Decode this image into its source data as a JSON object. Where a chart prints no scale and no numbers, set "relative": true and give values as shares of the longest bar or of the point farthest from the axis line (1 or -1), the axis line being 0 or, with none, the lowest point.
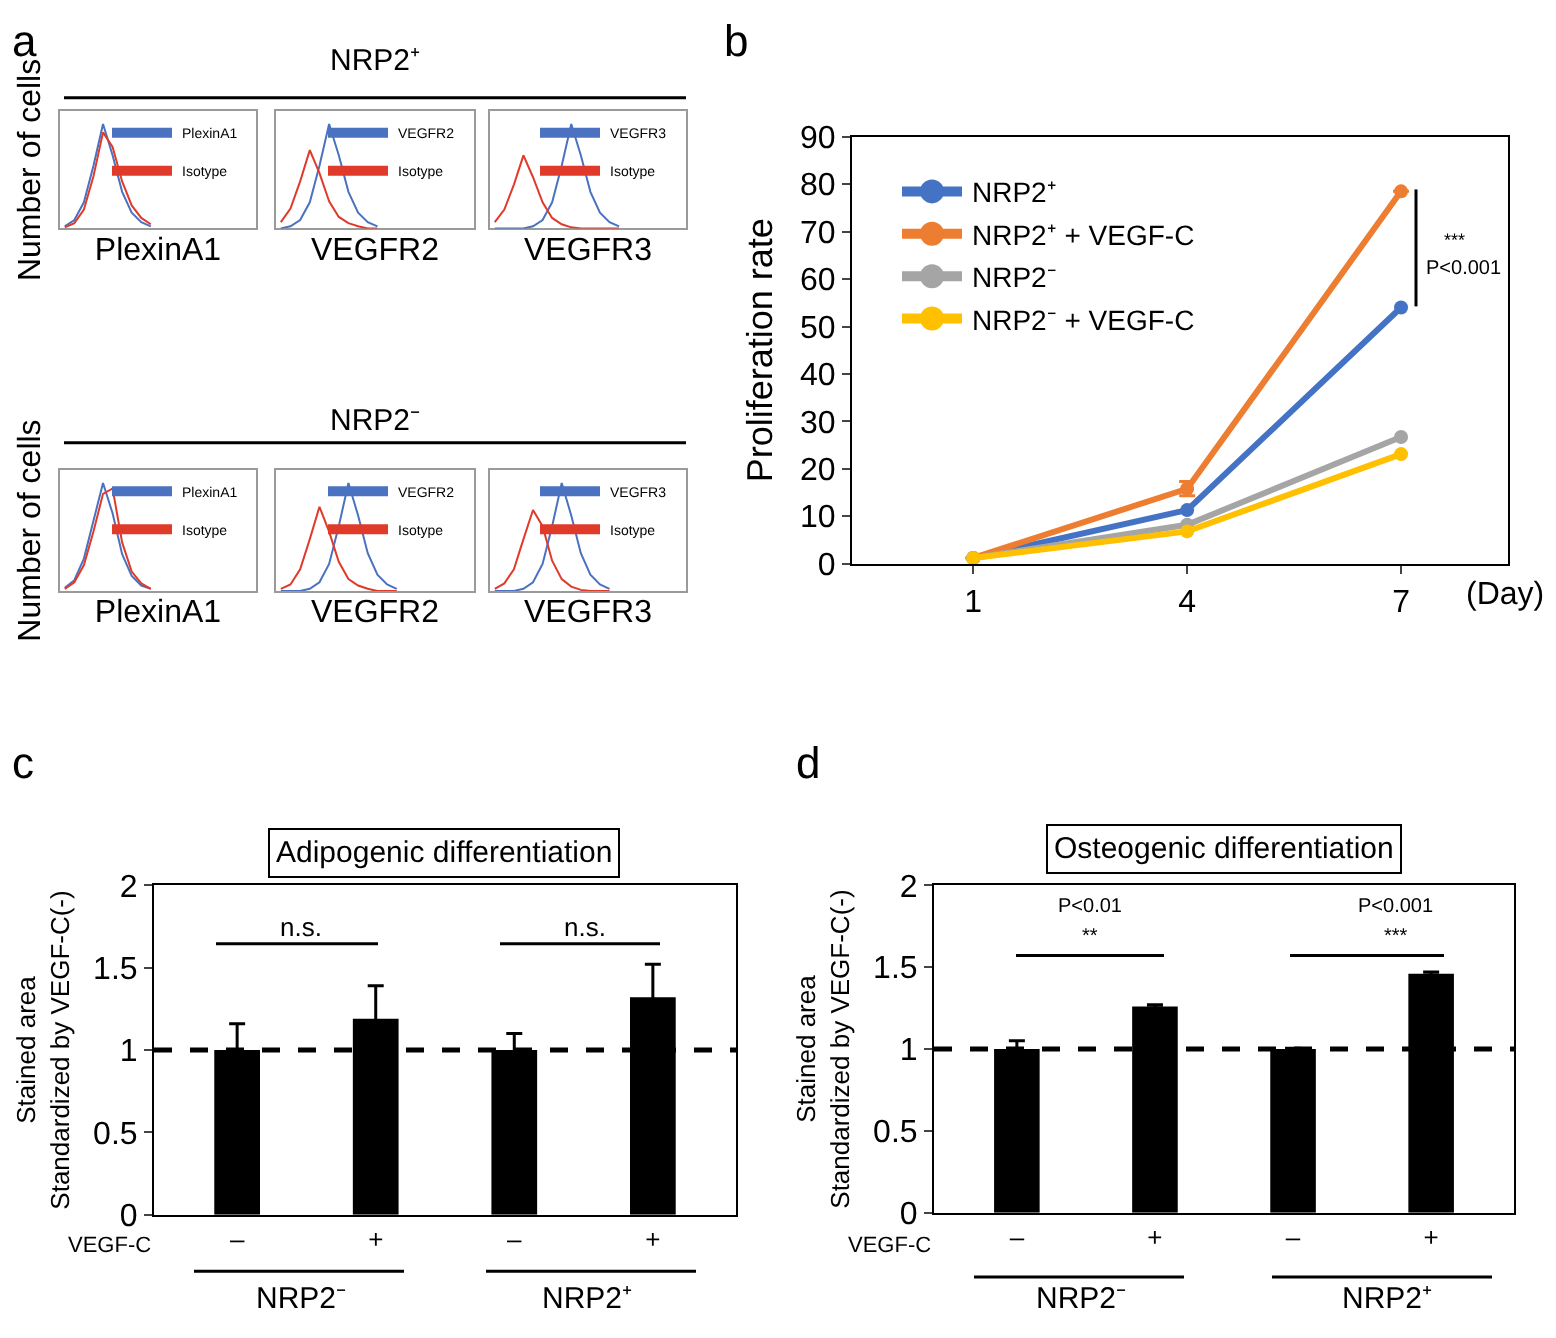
{
  "chart_data": [
    {
      "type": "line",
      "relative": true,
      "tick_labels": false,
      "legend": "top right",
      "xlabel": "PlexinA1",
      "ylabel": "Number of cells",
      "annotations": [
        "a",
        "NRP2⁺"
      ],
      "categories": [
        null,
        null,
        null,
        null,
        null,
        null,
        null,
        null,
        null,
        null
      ],
      "series": [
        {
          "name": "PlexinA1",
          "color": "#4a72c0",
          "values": [
            0.02,
            0.08,
            0.25,
            0.6,
            1,
            0.7,
            0.35,
            0.15,
            0.06,
            0.02
          ]
        },
        {
          "name": "Isotype",
          "color": "#e03a2a",
          "values": [
            0.01,
            0.05,
            0.18,
            0.5,
            0.92,
            0.78,
            0.45,
            0.22,
            0.1,
            0.04
          ]
        }
      ]
    },
    {
      "type": "line",
      "relative": true,
      "tick_labels": false,
      "legend": "top right",
      "xlabel": "VEGFR2",
      "categories": [
        null,
        null,
        null,
        null,
        null,
        null,
        null,
        null,
        null,
        null,
        null
      ],
      "series": [
        {
          "name": "VEGFR2",
          "color": "#4a72c0",
          "values": [
            0,
            0.02,
            0.08,
            0.25,
            0.6,
            1,
            0.7,
            0.35,
            0.15,
            0.06,
            0.02
          ]
        },
        {
          "name": "Isotype",
          "color": "#e03a2a",
          "values": [
            0.06,
            0.19,
            0.45,
            0.75,
            0.53,
            0.26,
            0.11,
            0.05,
            0.02,
            0,
            0
          ]
        }
      ]
    },
    {
      "type": "line",
      "relative": true,
      "tick_labels": false,
      "legend": "top right",
      "xlabel": "VEGFR3",
      "categories": [
        null,
        null,
        null,
        null,
        null,
        null,
        null,
        null,
        null,
        null,
        null,
        null,
        null,
        null
      ],
      "series": [
        {
          "name": "VEGFR3",
          "color": "#4a72c0",
          "values": [
            0,
            0,
            0,
            0,
            0.02,
            0.08,
            0.25,
            0.6,
            1,
            0.7,
            0.35,
            0.15,
            0.06,
            0.02
          ]
        },
        {
          "name": "Isotype",
          "color": "#e03a2a",
          "values": [
            0.06,
            0.18,
            0.42,
            0.7,
            0.49,
            0.25,
            0.1,
            0.04,
            0.01,
            0,
            0,
            0,
            0,
            0
          ]
        }
      ]
    },
    {
      "type": "line",
      "relative": true,
      "tick_labels": false,
      "legend": "top right",
      "xlabel": "PlexinA1",
      "ylabel": "Number of cells",
      "annotations": [
        "NRP2⁻"
      ],
      "categories": [
        null,
        null,
        null,
        null,
        null,
        null,
        null,
        null,
        null,
        null
      ],
      "series": [
        {
          "name": "PlexinA1",
          "color": "#4a72c0",
          "values": [
            0.03,
            0.1,
            0.3,
            0.65,
            1,
            0.72,
            0.34,
            0.14,
            0.05,
            0.02
          ]
        },
        {
          "name": "Isotype",
          "color": "#e03a2a",
          "values": [
            0.02,
            0.08,
            0.24,
            0.55,
            0.9,
            0.95,
            0.45,
            0.18,
            0.07,
            0.02
          ]
        }
      ]
    },
    {
      "type": "line",
      "relative": true,
      "tick_labels": false,
      "legend": "top right",
      "xlabel": "VEGFR2",
      "categories": [
        null,
        null,
        null,
        null,
        null,
        null,
        null,
        null,
        null,
        null,
        null,
        null,
        null
      ],
      "series": [
        {
          "name": "VEGFR2",
          "color": "#4a72c0",
          "values": [
            0,
            0,
            0,
            0.02,
            0.08,
            0.25,
            0.6,
            1,
            0.7,
            0.35,
            0.15,
            0.06,
            0.02
          ]
        },
        {
          "name": "Isotype",
          "color": "#e03a2a",
          "values": [
            0.02,
            0.06,
            0.2,
            0.48,
            0.78,
            0.55,
            0.27,
            0.11,
            0.05,
            0.02,
            0,
            0,
            0
          ]
        }
      ]
    },
    {
      "type": "line",
      "relative": true,
      "tick_labels": false,
      "legend": "top right",
      "xlabel": "VEGFR3",
      "categories": [
        null,
        null,
        null,
        null,
        null,
        null,
        null,
        null,
        null,
        null,
        null,
        null,
        null
      ],
      "series": [
        {
          "name": "VEGFR3",
          "color": "#4a72c0",
          "values": [
            0,
            0,
            0,
            0.02,
            0.08,
            0.25,
            0.6,
            1,
            0.7,
            0.35,
            0.15,
            0.06,
            0.02
          ]
        },
        {
          "name": "Isotype",
          "color": "#e03a2a",
          "values": [
            0.02,
            0.07,
            0.2,
            0.48,
            0.75,
            0.6,
            0.28,
            0.11,
            0.04,
            0.01,
            0,
            0,
            0
          ]
        }
      ]
    },
    {
      "type": "line",
      "x": [
        1,
        4,
        7
      ],
      "xlim": [
        -0.7,
        8.5
      ],
      "xticks": [
        1,
        4,
        7
      ],
      "ylim": [
        0,
        90
      ],
      "yticks": [
        0,
        10,
        20,
        30,
        40,
        50,
        60,
        70,
        80,
        90
      ],
      "xlabel": "(Day)",
      "ylabel": "Proliferation rate",
      "legend": "top left",
      "marker": "circle",
      "line_style": "solid",
      "annotations": [
        "b",
        "***",
        "P<0.001"
      ],
      "series": [
        {
          "name": "NRP2⁺",
          "color": "#4472c4",
          "values": [
            1.2,
            11.3,
            54
          ]
        },
        {
          "name": "NRP2⁺ + VEGF-C",
          "color": "#ed7d31",
          "values": [
            1.2,
            15.8,
            78.5
          ],
          "errors": [
            null,
            1.5,
            null
          ]
        },
        {
          "name": "NRP2⁻",
          "color": "#a5a5a5",
          "values": [
            1.2,
            8.2,
            26.7
          ]
        },
        {
          "name": "NRP2⁻ + VEGF-C",
          "color": "#ffc000",
          "values": [
            1.2,
            6.8,
            23.1
          ]
        }
      ]
    },
    {
      "type": "bar",
      "title": "Adipogenic differentiation",
      "ylabel": "Stained area\nStandardized by VEGF-C(-)",
      "categories": [
        "–",
        "+",
        "–",
        "+"
      ],
      "values": [
        1.0,
        1.19,
        1.0,
        1.32
      ],
      "errors": [
        0.16,
        0.2,
        0.1,
        0.2
      ],
      "color": "#000000",
      "ylim": [
        0,
        2
      ],
      "yticks": [
        0,
        0.5,
        1,
        1.5,
        2
      ],
      "ref_lines": [
        {
          "axis": "y",
          "value": 1,
          "line_style": "dashed",
          "color": "#000000"
        }
      ],
      "annotations": [
        "c",
        "n.s.",
        "n.s.",
        "VEGF-C",
        "NRP2⁻",
        "NRP2⁺"
      ]
    },
    {
      "type": "bar",
      "title": "Osteogenic differentiation",
      "ylabel": "Stained area\nStandardized by VEGF-C(-)",
      "categories": [
        "–",
        "+",
        "–",
        "+"
      ],
      "values": [
        1.0,
        1.26,
        1.0,
        1.46
      ],
      "errors": [
        0.05,
        0.01,
        0.005,
        0.01
      ],
      "color": "#000000",
      "ylim": [
        0,
        2
      ],
      "yticks": [
        0,
        0.5,
        1,
        1.5,
        2
      ],
      "ref_lines": [
        {
          "axis": "y",
          "value": 1,
          "line_style": "dashed",
          "color": "#000000"
        }
      ],
      "annotations": [
        "d",
        "P<0.01",
        "**",
        "P<0.001",
        "***",
        "VEGF-C",
        "NRP2⁻",
        "NRP2⁺"
      ]
    }
  ]
}
